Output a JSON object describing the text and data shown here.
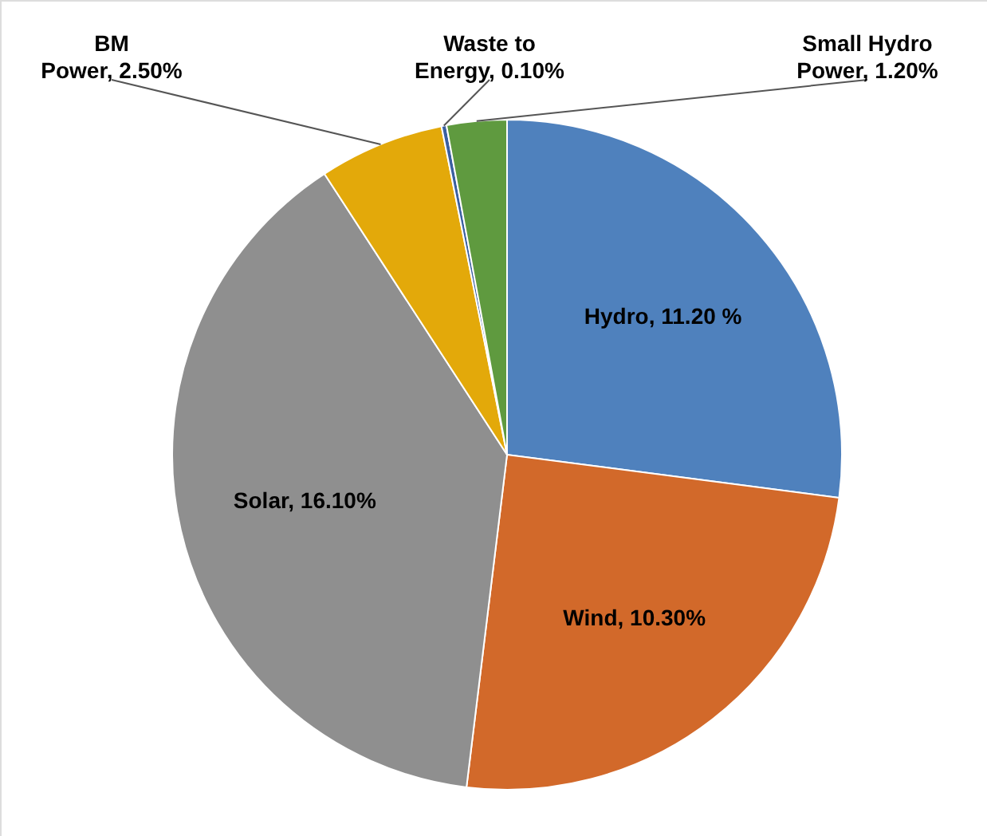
{
  "chart_data": {
    "type": "pie",
    "categories": [
      "Hydro",
      "Wind",
      "Solar",
      "BM Power",
      "Waste to Energy",
      "Small Hydro Power"
    ],
    "values": [
      11.2,
      10.3,
      16.1,
      2.5,
      0.1,
      1.2
    ],
    "value_labels": [
      "11.20 %",
      "10.30%",
      "16.10%",
      "2.50%",
      "0.10%",
      "1.20%"
    ],
    "colors": [
      "#4f81bd",
      "#d2692a",
      "#8f8f8f",
      "#e3a90a",
      "#3a5fa0",
      "#5f9a3f"
    ]
  }
}
